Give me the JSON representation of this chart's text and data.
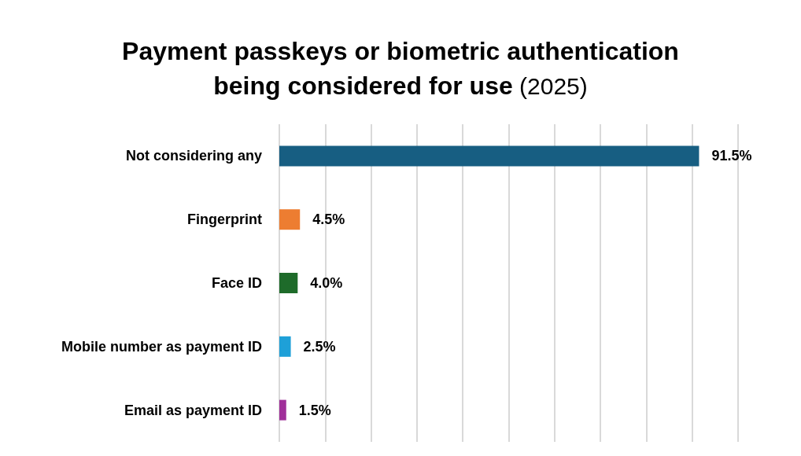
{
  "chart_data": {
    "type": "bar",
    "orientation": "horizontal",
    "title": "Payment passkeys or biometric authentication being considered for use (2025)",
    "categories": [
      "Not considering any",
      "Fingerprint",
      "Face ID",
      "Mobile number as payment ID",
      "Email as payment ID"
    ],
    "values": [
      91.5,
      4.5,
      4.0,
      2.5,
      1.5
    ],
    "value_labels": [
      "91.5%",
      "4.5%",
      "4.0%",
      "2.5%",
      "1.5%"
    ],
    "colors": [
      "#175e82",
      "#ed7d31",
      "#1e6b2a",
      "#1ea0d8",
      "#a0309a"
    ],
    "xlim": [
      0,
      100
    ],
    "xticks": [
      {
        "value": 0,
        "label": null
      },
      {
        "value": 10,
        "label": null
      },
      {
        "value": 20,
        "label": null
      },
      {
        "value": 30,
        "label": null
      },
      {
        "value": 40,
        "label": null
      },
      {
        "value": 50,
        "label": null
      },
      {
        "value": 60,
        "label": null
      },
      {
        "value": 70,
        "label": null
      },
      {
        "value": 80,
        "label": null
      },
      {
        "value": 90,
        "label": null
      },
      {
        "value": 100,
        "label": null
      }
    ],
    "grid": "x",
    "tick_labels": "y"
  }
}
